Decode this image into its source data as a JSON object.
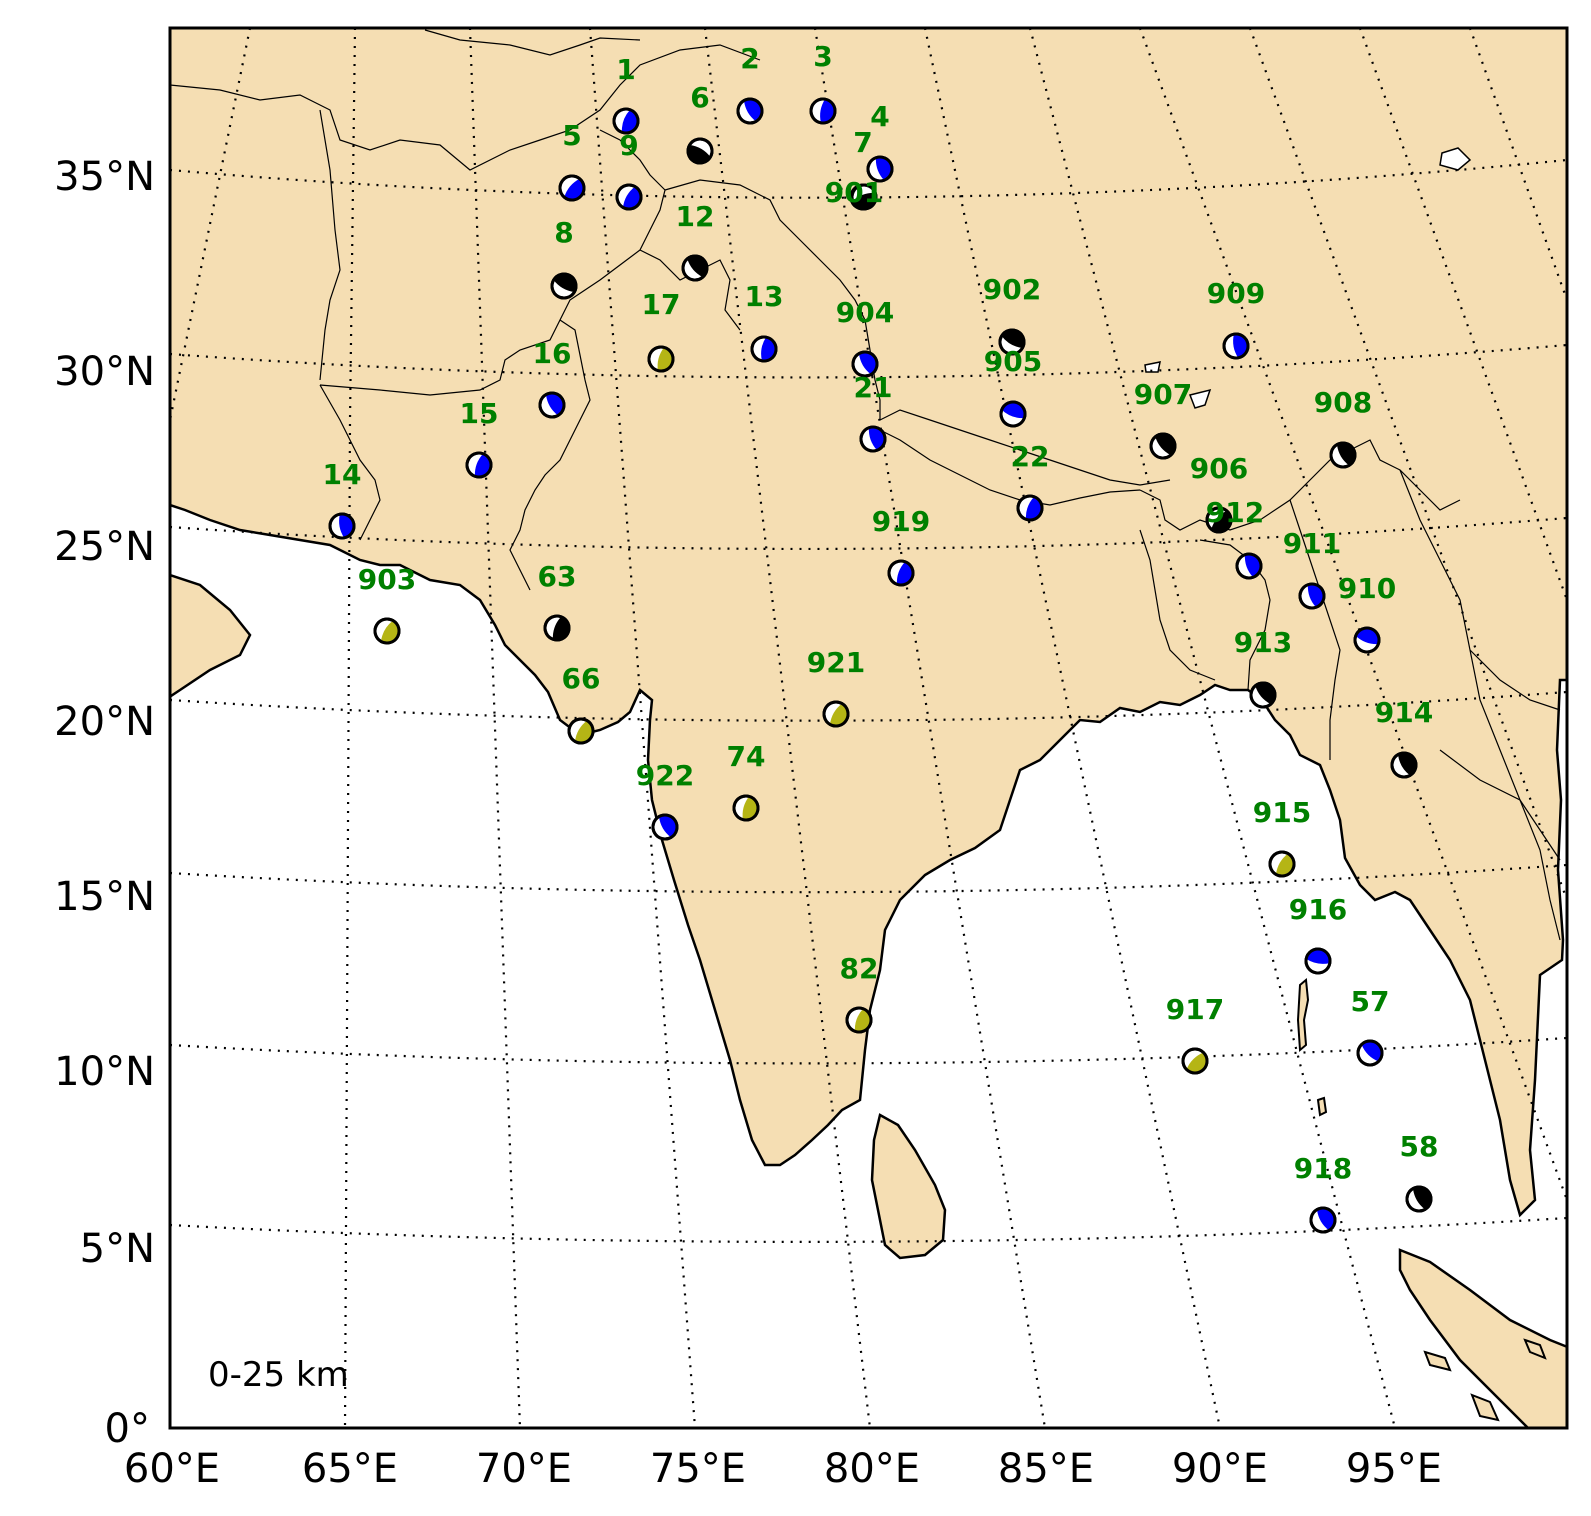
{
  "map": {
    "note": "0-25 km",
    "colors": {
      "land": "#f5deb3",
      "sea": "#ffffff",
      "label": "#008000",
      "grid": "#000000"
    },
    "lat_labels": [
      "0°",
      "5°N",
      "10°N",
      "15°N",
      "20°N",
      "25°N",
      "30°N",
      "35°N"
    ],
    "lon_labels": [
      "60°E",
      "65°E",
      "70°E",
      "75°E",
      "80°E",
      "85°E",
      "90°E",
      "95°E"
    ],
    "mechanisms": [
      {
        "id": "1",
        "fill": "blue"
      },
      {
        "id": "2",
        "fill": "blue"
      },
      {
        "id": "3",
        "fill": "blue"
      },
      {
        "id": "4",
        "fill": "blue"
      },
      {
        "id": "5",
        "fill": "blue"
      },
      {
        "id": "6",
        "fill": "black"
      },
      {
        "id": "7",
        "fill": "black"
      },
      {
        "id": "8",
        "fill": "black"
      },
      {
        "id": "9",
        "fill": "blue"
      },
      {
        "id": "12",
        "fill": "black"
      },
      {
        "id": "13",
        "fill": "blue"
      },
      {
        "id": "14",
        "fill": "blue"
      },
      {
        "id": "15",
        "fill": "blue"
      },
      {
        "id": "16",
        "fill": "blue"
      },
      {
        "id": "17",
        "fill": "olive"
      },
      {
        "id": "21",
        "fill": "blue"
      },
      {
        "id": "22",
        "fill": "blue"
      },
      {
        "id": "57",
        "fill": "blue"
      },
      {
        "id": "58",
        "fill": "black"
      },
      {
        "id": "63",
        "fill": "black"
      },
      {
        "id": "66",
        "fill": "olive"
      },
      {
        "id": "74",
        "fill": "olive"
      },
      {
        "id": "82",
        "fill": "olive"
      },
      {
        "id": "901",
        "fill": "black"
      },
      {
        "id": "902",
        "fill": "black"
      },
      {
        "id": "903",
        "fill": "olive"
      },
      {
        "id": "904",
        "fill": "blue"
      },
      {
        "id": "905",
        "fill": "blue"
      },
      {
        "id": "906",
        "fill": "black"
      },
      {
        "id": "907",
        "fill": "black"
      },
      {
        "id": "908",
        "fill": "black"
      },
      {
        "id": "909",
        "fill": "blue"
      },
      {
        "id": "910",
        "fill": "blue"
      },
      {
        "id": "911",
        "fill": "blue"
      },
      {
        "id": "912",
        "fill": "blue"
      },
      {
        "id": "913",
        "fill": "black"
      },
      {
        "id": "914",
        "fill": "black"
      },
      {
        "id": "915",
        "fill": "olive"
      },
      {
        "id": "916",
        "fill": "blue"
      },
      {
        "id": "917",
        "fill": "olive"
      },
      {
        "id": "918",
        "fill": "blue"
      },
      {
        "id": "919",
        "fill": "blue"
      },
      {
        "id": "921",
        "fill": "olive"
      },
      {
        "id": "922",
        "fill": "blue"
      }
    ]
  }
}
